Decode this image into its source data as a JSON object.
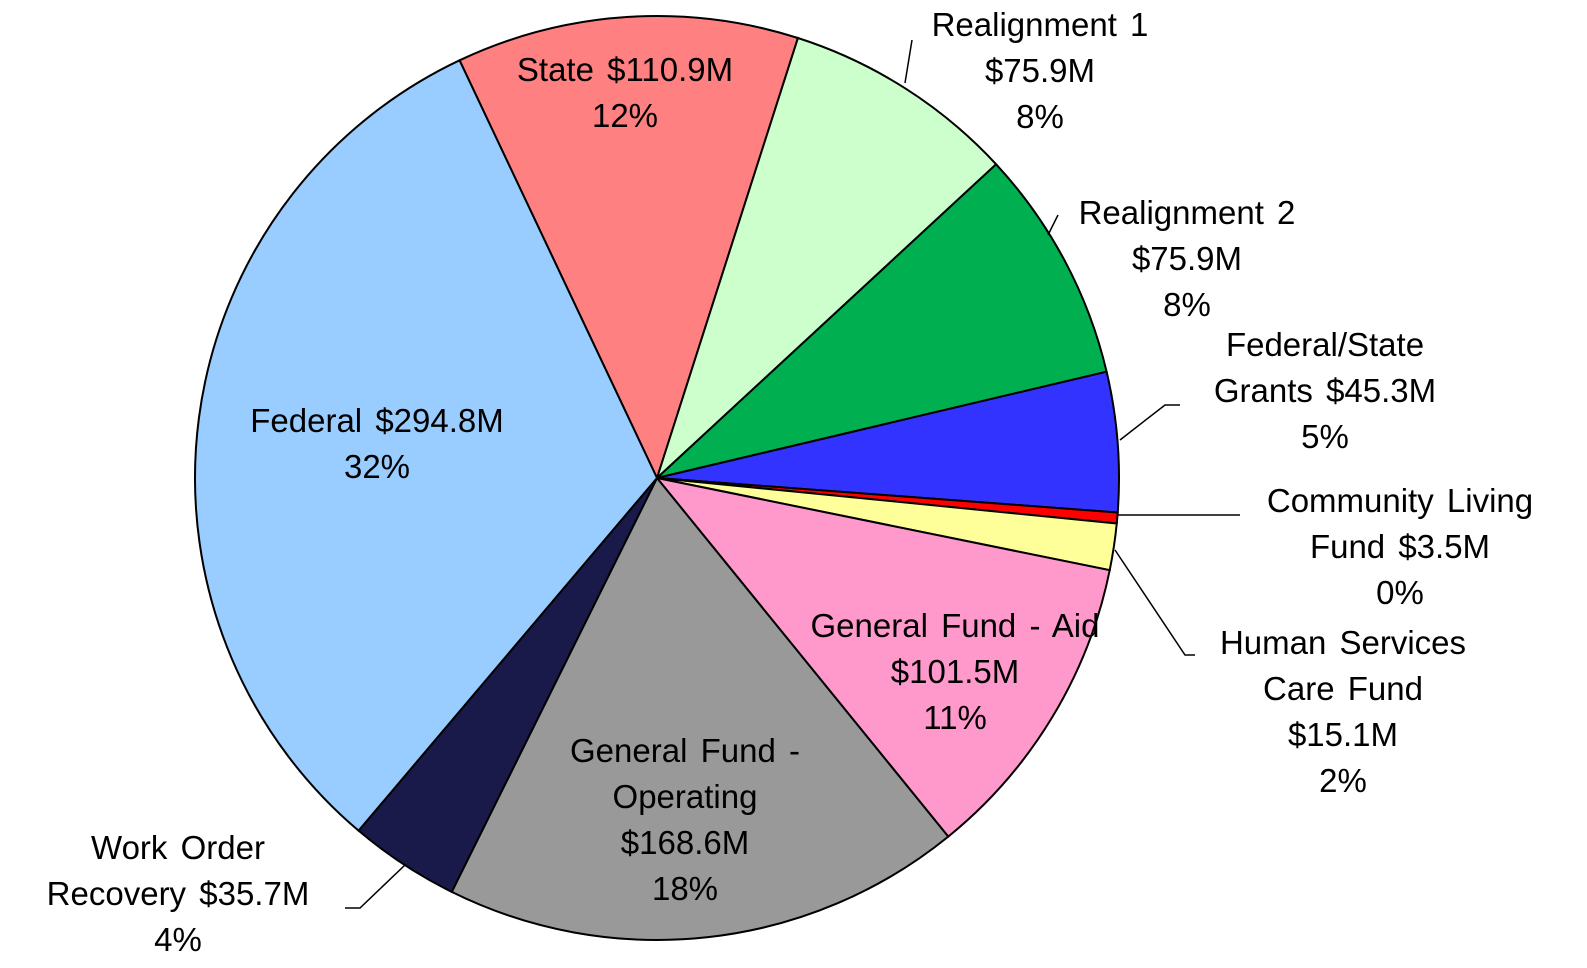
{
  "chart_data": {
    "type": "pie",
    "categories": [
      "State",
      "Realignment 1",
      "Realignment 2",
      "Federal/State Grants",
      "Community Living Fund",
      "Human Services Care Fund",
      "General Fund - Aid",
      "General Fund - Operating",
      "Work Order Recovery",
      "Federal"
    ],
    "values": [
      110.9,
      75.9,
      75.9,
      45.3,
      3.5,
      15.1,
      101.5,
      168.6,
      35.7,
      294.8
    ],
    "value_labels": [
      "$110.9M",
      "$75.9M",
      "$75.9M",
      "$45.3M",
      "$3.5M",
      "$15.1M",
      "$101.5M",
      "$168.6M",
      "$35.7M",
      "$294.8M"
    ],
    "percents": [
      12,
      8,
      8,
      5,
      0,
      2,
      11,
      18,
      4,
      32
    ],
    "percent_labels": [
      "12%",
      "8%",
      "8%",
      "5%",
      "0%",
      "2%",
      "11%",
      "18%",
      "4%",
      "32%"
    ],
    "colors": [
      "#ff8080",
      "#ccffcc",
      "#00b050",
      "#3333ff",
      "#ff0000",
      "#ffff99",
      "#ff99cc",
      "#999999",
      "#1a1a4a",
      "#99ccff"
    ]
  }
}
